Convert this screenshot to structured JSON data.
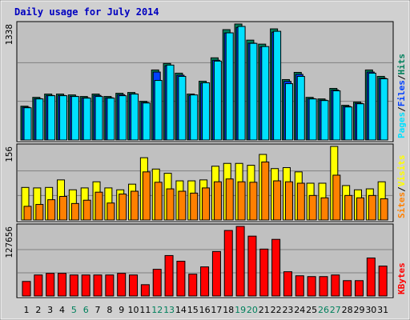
{
  "chart_data": [
    {
      "type": "bar",
      "title": "Daily usage for July 2014",
      "categories": [
        1,
        2,
        3,
        4,
        5,
        6,
        7,
        8,
        9,
        10,
        11,
        12,
        13,
        14,
        15,
        16,
        17,
        18,
        19,
        20,
        21,
        22,
        23,
        24,
        25,
        26,
        27,
        28,
        29,
        30,
        31
      ],
      "category_colors": [
        "#000000",
        "#000000",
        "#000000",
        "#000000",
        "#00805c",
        "#00805c",
        "#000000",
        "#000000",
        "#000000",
        "#000000",
        "#000000",
        "#00805c",
        "#00805c",
        "#000000",
        "#000000",
        "#000000",
        "#000000",
        "#000000",
        "#00805c",
        "#00805c",
        "#000000",
        "#000000",
        "#000000",
        "#000000",
        "#000000",
        "#00805c",
        "#00805c",
        "#000000",
        "#000000",
        "#000000",
        "#000000"
      ],
      "ylim": [
        0,
        1338
      ],
      "yticks": [
        1338
      ],
      "separator": "/",
      "series": [
        {
          "name": "Hits",
          "color": "#00805c",
          "values": [
            390,
            492,
            530,
            530,
            520,
            502,
            530,
            502,
            539,
            548,
            446,
            808,
            883,
            771,
            530,
            678,
            948,
            1273,
            1338,
            1152,
            1106,
            1282,
            697,
            780,
            492,
            474,
            595,
            400,
            437,
            808,
            734
          ]
        },
        {
          "name": "Files",
          "color": "#0040ff",
          "values": [
            378,
            477,
            514,
            514,
            504,
            487,
            514,
            487,
            523,
            532,
            433,
            784,
            857,
            748,
            514,
            658,
            920,
            1235,
            1298,
            1117,
            1073,
            1244,
            676,
            757,
            477,
            460,
            577,
            388,
            424,
            784,
            712
          ]
        },
        {
          "name": "Pages",
          "color": "#00e0ff",
          "values": [
            372,
            474,
            511,
            511,
            502,
            483,
            502,
            483,
            511,
            530,
            427,
            687,
            864,
            734,
            520,
            660,
            910,
            1236,
            1310,
            1115,
            1078,
            1254,
            650,
            734,
            474,
            455,
            567,
            381,
            418,
            771,
            706
          ]
        }
      ]
    },
    {
      "type": "bar",
      "ylim": [
        0,
        156
      ],
      "yticks": [
        156
      ],
      "separator": "/",
      "series": [
        {
          "name": "Visits",
          "color": "#ffff00",
          "values": [
            69,
            68,
            69,
            85,
            64,
            68,
            81,
            68,
            64,
            76,
            132,
            108,
            99,
            83,
            83,
            85,
            114,
            120,
            120,
            116,
            139,
            109,
            111,
            102,
            78,
            78,
            156,
            73,
            64,
            66,
            81
          ]
        },
        {
          "name": "Sites",
          "color": "#ff8000",
          "values": [
            29,
            33,
            43,
            50,
            35,
            42,
            59,
            36,
            55,
            61,
            102,
            80,
            66,
            61,
            57,
            68,
            81,
            87,
            81,
            80,
            123,
            83,
            81,
            78,
            52,
            47,
            95,
            52,
            47,
            52,
            45
          ]
        }
      ]
    },
    {
      "type": "bar",
      "ylim": [
        0,
        127656
      ],
      "yticks": [
        127656
      ],
      "series": [
        {
          "name": "KBytes",
          "color": "#ff0000",
          "values": [
            26712,
            38584,
            41552,
            41552,
            38584,
            38584,
            38584,
            38584,
            41552,
            38584,
            20776,
            48972,
            74200,
            63812,
            40068,
            53424,
            81620,
            120204,
            127656,
            109816,
            86072,
            103880,
            44520,
            37100,
            35616,
            35616,
            38584,
            28196,
            28196,
            69748,
            54908
          ]
        }
      ]
    }
  ]
}
